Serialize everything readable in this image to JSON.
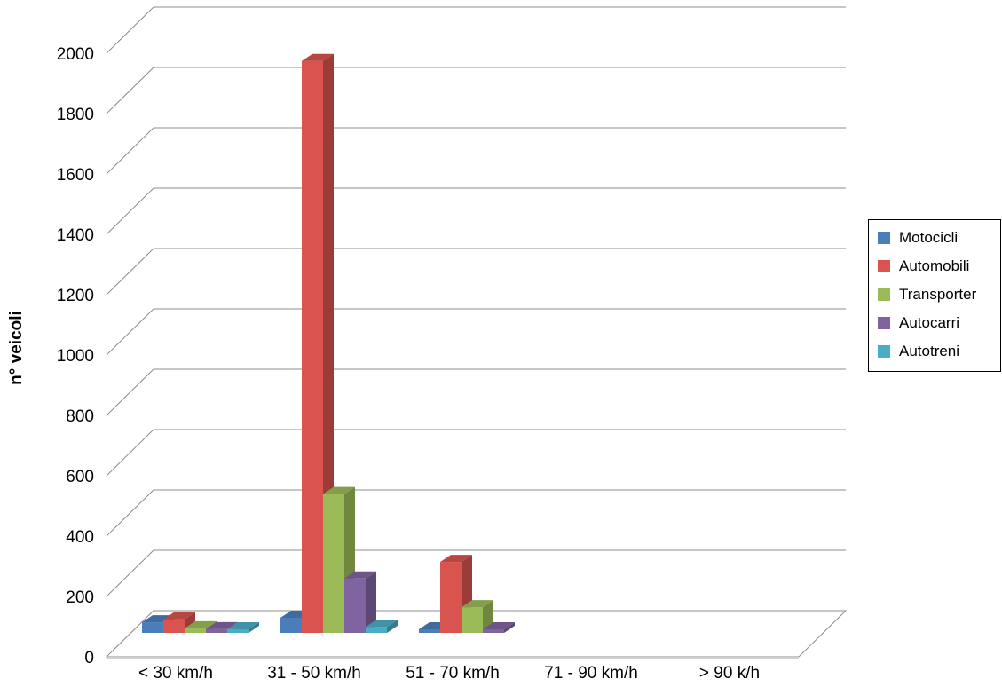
{
  "chart_data": {
    "type": "bar",
    "categories": [
      "< 30 km/h",
      "31 - 50 km/h",
      "51 - 70 km/h",
      "71 - 90 km/h",
      "> 90 k/h"
    ],
    "series": [
      {
        "name": "Motocicli",
        "color": "#4a7ebb",
        "values": [
          35,
          50,
          10,
          0,
          0
        ]
      },
      {
        "name": "Automobili",
        "color": "#d9534f",
        "values": [
          45,
          1895,
          235,
          0,
          0
        ]
      },
      {
        "name": "Transporter",
        "color": "#9bbb59",
        "values": [
          15,
          460,
          85,
          0,
          0
        ]
      },
      {
        "name": "Autocarri",
        "color": "#8064a2",
        "values": [
          12,
          180,
          5,
          0,
          0
        ]
      },
      {
        "name": "Autotreni",
        "color": "#4bacc6",
        "values": [
          10,
          20,
          0,
          0,
          0
        ]
      }
    ],
    "ylabel": "n° veicoli",
    "xlabel": "",
    "ylim": [
      0,
      2000
    ],
    "yticks": [
      "0",
      "200",
      "400",
      "600",
      "800",
      "1000",
      "1200",
      "1400",
      "1600",
      "1800",
      "2000"
    ],
    "grid": true,
    "legend_position": "right",
    "style": "3d-clustered-column"
  }
}
